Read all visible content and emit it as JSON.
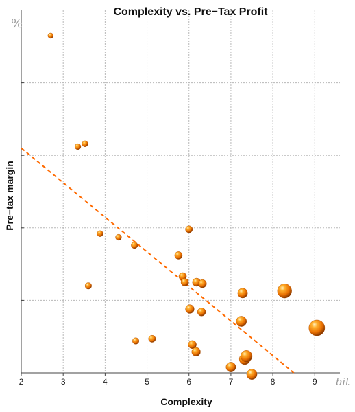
{
  "chart_data": {
    "type": "scatter",
    "title": "Complexity vs. Pre−Tax Profit",
    "xlabel": "Complexity",
    "ylabel": "Pre−tax margin",
    "x_unit": "bit",
    "y_unit": "%",
    "xlim": [
      2,
      9.6
    ],
    "ylim": [
      0,
      50
    ],
    "xticks": [
      2,
      3,
      4,
      5,
      6,
      7,
      8,
      9
    ],
    "yticks": [
      10,
      20,
      30,
      40
    ],
    "show_y_tick_labels": false,
    "grid": true,
    "series_color": "#ff8c00",
    "trend_color": "#ff6a00",
    "trend_line": {
      "x0": 2,
      "y0": 31.0,
      "x1": 8.5,
      "y1": 0
    },
    "points": [
      {
        "x": 2.7,
        "y": 46.5,
        "size": 1.0
      },
      {
        "x": 3.35,
        "y": 31.2,
        "size": 1.1
      },
      {
        "x": 3.52,
        "y": 31.6,
        "size": 1.1
      },
      {
        "x": 3.6,
        "y": 12.0,
        "size": 1.2
      },
      {
        "x": 3.88,
        "y": 19.2,
        "size": 1.1
      },
      {
        "x": 4.32,
        "y": 18.7,
        "size": 1.1
      },
      {
        "x": 4.7,
        "y": 17.6,
        "size": 1.2
      },
      {
        "x": 4.73,
        "y": 4.4,
        "size": 1.2
      },
      {
        "x": 5.12,
        "y": 4.7,
        "size": 1.3
      },
      {
        "x": 5.75,
        "y": 16.2,
        "size": 1.4
      },
      {
        "x": 5.85,
        "y": 13.3,
        "size": 1.4
      },
      {
        "x": 5.9,
        "y": 12.5,
        "size": 1.4
      },
      {
        "x": 6.0,
        "y": 19.8,
        "size": 1.3
      },
      {
        "x": 6.02,
        "y": 8.8,
        "size": 1.6
      },
      {
        "x": 6.08,
        "y": 3.9,
        "size": 1.5
      },
      {
        "x": 6.17,
        "y": 2.9,
        "size": 1.6
      },
      {
        "x": 6.18,
        "y": 12.5,
        "size": 1.5
      },
      {
        "x": 6.32,
        "y": 12.3,
        "size": 1.5
      },
      {
        "x": 6.3,
        "y": 8.4,
        "size": 1.5
      },
      {
        "x": 7.0,
        "y": 0.8,
        "size": 1.8
      },
      {
        "x": 7.25,
        "y": 7.1,
        "size": 1.9
      },
      {
        "x": 7.28,
        "y": 11.0,
        "size": 1.8
      },
      {
        "x": 7.33,
        "y": 1.9,
        "size": 2.0
      },
      {
        "x": 7.37,
        "y": 2.3,
        "size": 2.1
      },
      {
        "x": 7.5,
        "y": -0.2,
        "size": 1.9
      },
      {
        "x": 8.28,
        "y": 11.3,
        "size": 2.6
      },
      {
        "x": 9.05,
        "y": 6.2,
        "size": 2.9
      }
    ]
  }
}
